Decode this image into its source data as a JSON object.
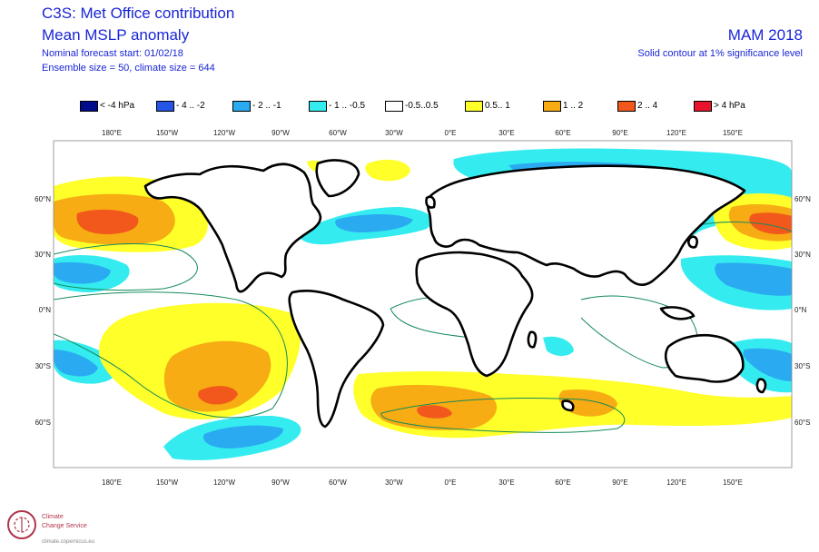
{
  "header": {
    "title_line1": "C3S: Met Office contribution",
    "title_line2": "Mean MSLP anomaly",
    "forecast_start": "Nominal forecast start: 01/02/18",
    "ensemble": "Ensemble size = 50, climate size = 644",
    "season": "MAM 2018",
    "contour_note": "Solid contour at 1% significance level"
  },
  "legend": [
    {
      "label": "< -4 hPa",
      "color": "#000c8c"
    },
    {
      "label": "- 4 .. -2",
      "color": "#2455e4"
    },
    {
      "label": "- 2 .. -1",
      "color": "#2aaaf0"
    },
    {
      "label": "- 1 .. -0.5",
      "color": "#34ecf0"
    },
    {
      "label": "-0.5..0.5",
      "color": "#ffffff"
    },
    {
      "label": "0.5.. 1",
      "color": "#ffff2a"
    },
    {
      "label": "1 .. 2",
      "color": "#f6ac12"
    },
    {
      "label": "2 .. 4",
      "color": "#f2581c"
    },
    {
      "label": "> 4 hPa",
      "color": "#e8142e"
    }
  ],
  "axes": {
    "lon_labels": [
      "180°E",
      "150°W",
      "120°W",
      "90°W",
      "60°W",
      "30°W",
      "0°E",
      "30°E",
      "60°E",
      "90°E",
      "120°E",
      "150°E"
    ],
    "lat_labels": [
      "60°N",
      "30°N",
      "0°N",
      "30°S",
      "60°S"
    ]
  },
  "logo": {
    "line1": "Climate",
    "line2": "Change Service",
    "line3": "climate.copernicus.eu"
  },
  "colors": {
    "title": "#1a26d6",
    "significance_contour": "#168a5a",
    "coastline": "#000000"
  }
}
